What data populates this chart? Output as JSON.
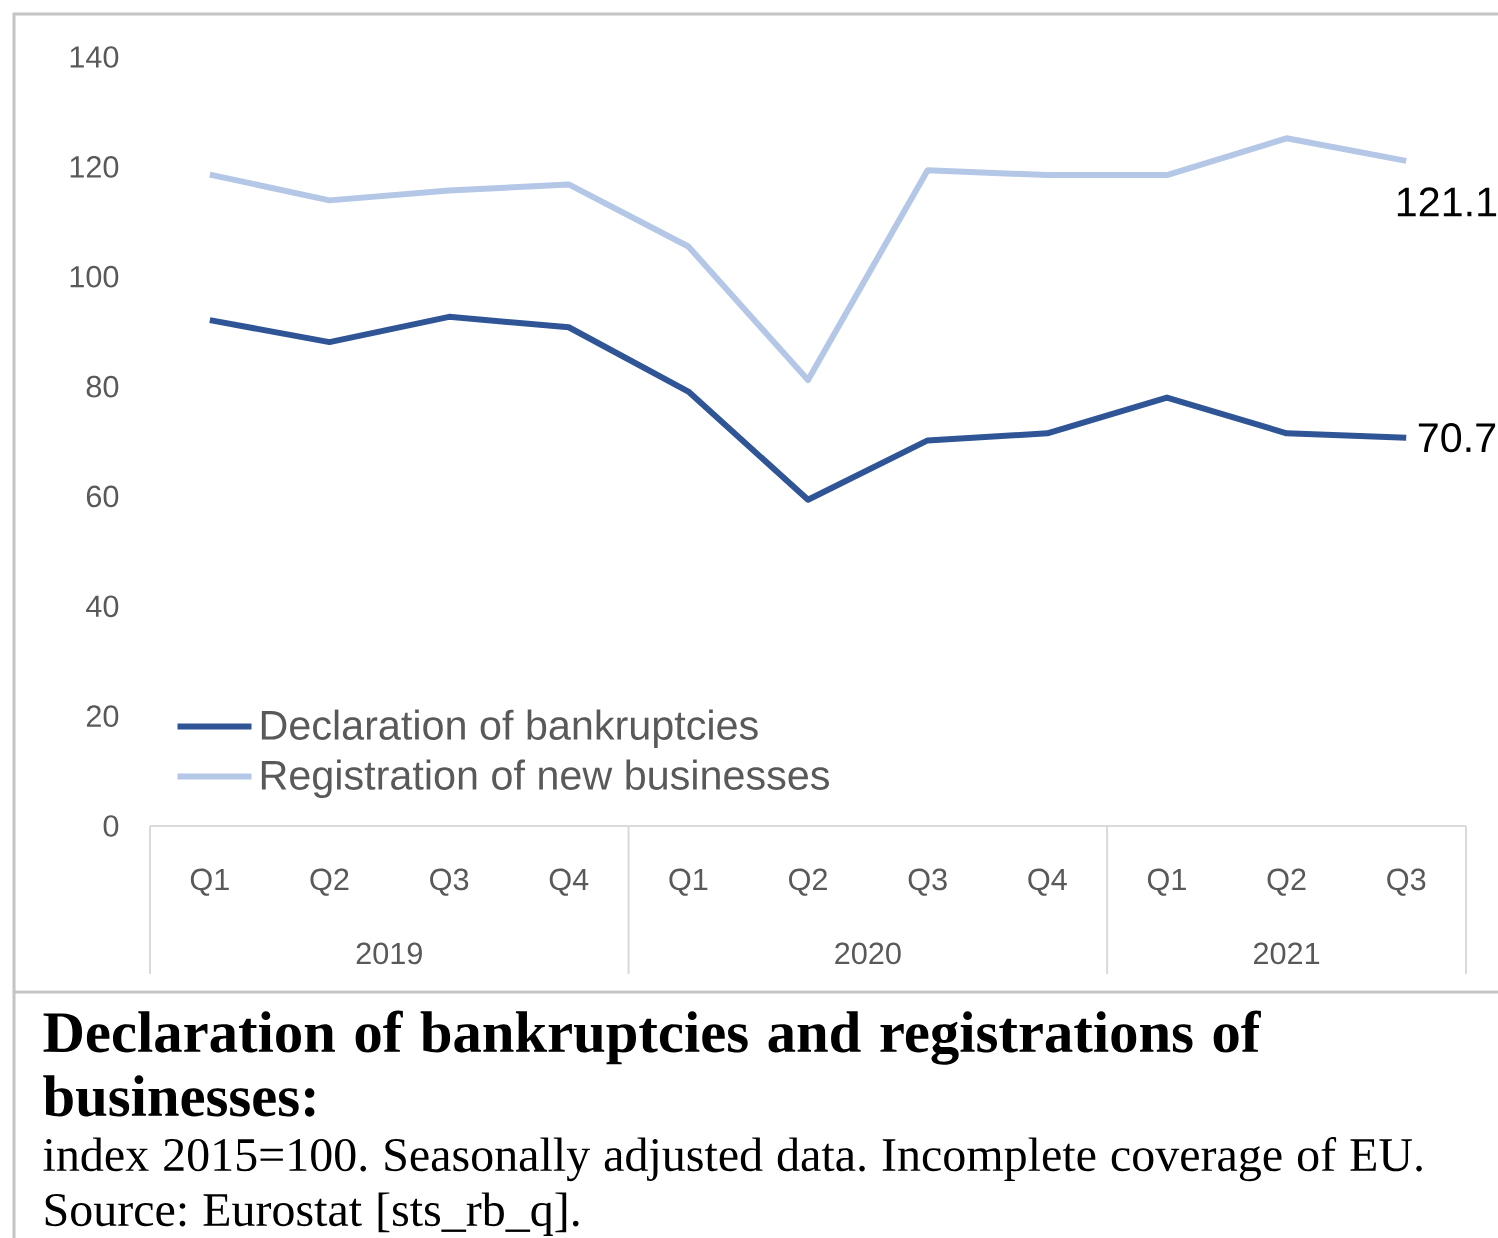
{
  "chart_data": {
    "type": "line",
    "title": "Declaration of bankruptcies and registrations of businesses:",
    "subtitle": "index 2015=100. Seasonally adjusted data. Incomplete coverage of EU.",
    "annotations": [
      "2019",
      "2020",
      "2021",
      "Source: Eurostat [sts_rb_q]."
    ],
    "categories": [
      "Q1",
      "Q2",
      "Q3",
      "Q4",
      "Q1",
      "Q2",
      "Q3",
      "Q4",
      "Q1",
      "Q2",
      "Q3"
    ],
    "series": [
      {
        "name": "Declaration of bankruptcies",
        "color": "#2f5597",
        "values": [
          92.1,
          88.1,
          92.7,
          90.8,
          79.1,
          59.4,
          70.2,
          71.5,
          78.0,
          71.5,
          70.7
        ],
        "value_labels": [
          null,
          null,
          null,
          null,
          null,
          null,
          null,
          null,
          null,
          null,
          "70.7"
        ]
      },
      {
        "name": "Registration of new businesses",
        "color": "#b4c7e7",
        "values": [
          118.6,
          113.9,
          115.7,
          116.8,
          105.5,
          81.2,
          119.4,
          118.5,
          118.5,
          125.2,
          121.1
        ],
        "value_labels": [
          null,
          null,
          null,
          null,
          null,
          null,
          null,
          null,
          null,
          null,
          "121.1"
        ]
      }
    ],
    "ylim": [
      0,
      140
    ],
    "yticks": [
      0,
      20,
      40,
      60,
      80,
      100,
      120,
      140
    ],
    "legend": "bottom left"
  }
}
